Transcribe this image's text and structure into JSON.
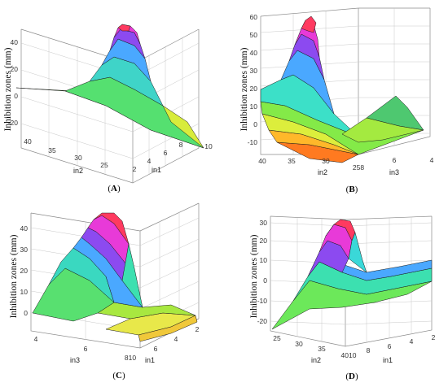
{
  "chart_data": [
    {
      "type": "surface3d",
      "id": "A",
      "caption": "A",
      "zlabel": "Inhibition zones (mm)",
      "xlabel": "in1",
      "ylabel": "in2",
      "xticks": [
        "2",
        "4",
        "6",
        "8",
        "10"
      ],
      "yticks": [
        "25",
        "30",
        "35",
        "40"
      ],
      "zticks": [
        "-20",
        "0",
        "20",
        "40"
      ],
      "zlim": [
        -25,
        55
      ],
      "grid": true
    },
    {
      "type": "surface3d",
      "id": "B",
      "caption": "B",
      "zlabel": "Inhibition zones (mm)",
      "xlabel": "in3",
      "ylabel": "in2",
      "xticks": [
        "258",
        "6",
        "4"
      ],
      "yticks": [
        "40",
        "35",
        "30"
      ],
      "zticks": [
        "-10",
        "0",
        "10",
        "20",
        "30",
        "40",
        "50",
        "60"
      ],
      "zlim": [
        -15,
        62
      ],
      "grid": true
    },
    {
      "type": "surface3d",
      "id": "C",
      "caption": "C",
      "zlabel": "Inhibition zones (mm)",
      "xlabel": "in1",
      "ylabel": "in3",
      "xticks": [
        "810",
        "6",
        "4",
        "2"
      ],
      "yticks": [
        "4",
        "6"
      ],
      "zticks": [
        "0",
        "10",
        "20",
        "30",
        "40"
      ],
      "zlim": [
        -5,
        45
      ],
      "grid": true
    },
    {
      "type": "surface3d",
      "id": "D",
      "caption": "D",
      "zlabel": "Inhibition zones (mm)",
      "xlabel": "in1",
      "ylabel": "in2",
      "xticks": [
        "4010",
        "8",
        "6",
        "4",
        "2"
      ],
      "yticks": [
        "25",
        "30",
        "35"
      ],
      "zticks": [
        "-20",
        "-10",
        "0",
        "10",
        "20",
        "30"
      ],
      "zlim": [
        -28,
        32
      ],
      "grid": true
    }
  ]
}
